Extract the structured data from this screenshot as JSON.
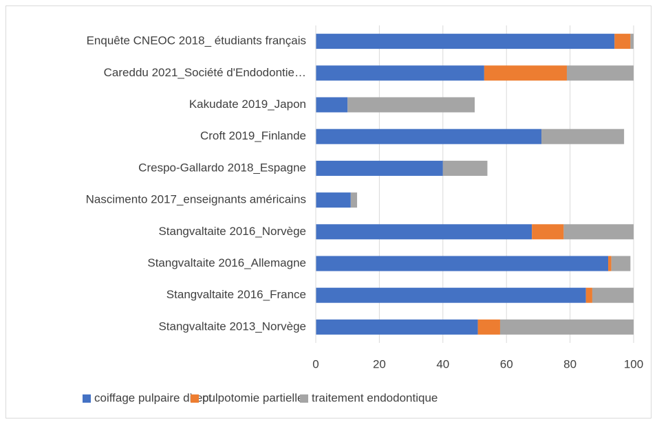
{
  "chart_data": {
    "type": "stacked-barh",
    "categories": [
      "Enquête CNEOC 2018_ étudiants français",
      "Careddu 2021_Société d'Endodontie…",
      "Kakudate 2019_Japon",
      "Croft 2019_Finlande",
      "Crespo-Gallardo 2018_Espagne",
      "Nascimento 2017_enseignants américains",
      "Stangvaltaite 2016_Norvège",
      "Stangvaltaite 2016_Allemagne",
      "Stangvaltaite 2016_France",
      "Stangvaltaite 2013_Norvège"
    ],
    "series": [
      {
        "name": "coiffage pulpaire direct",
        "color": "#4472c4",
        "values": [
          94,
          53,
          10,
          71,
          40,
          11,
          68,
          92,
          85,
          51
        ]
      },
      {
        "name": "pulpotomie partielle",
        "color": "#ed7d31",
        "values": [
          5,
          26,
          0,
          0,
          0,
          0,
          10,
          1,
          2,
          7
        ]
      },
      {
        "name": "traitement endodontique",
        "color": "#a5a5a5",
        "values": [
          1,
          21,
          40,
          26,
          14,
          2,
          22,
          6,
          13,
          42
        ]
      }
    ],
    "xlim": [
      0,
      100
    ],
    "xticks": [
      0,
      20,
      40,
      60,
      80,
      100
    ],
    "grid": true,
    "legend": "bottom"
  }
}
